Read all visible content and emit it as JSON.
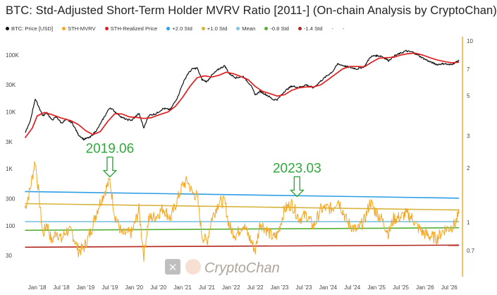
{
  "chart_data": {
    "type": "line",
    "title": "BTC: Std-Adjusted Short-Term Holder MVRV Ratio [2011-] (On-chain Analysis by CryptoChan)",
    "legend": [
      {
        "name": "BTC: Price [USD]",
        "color": "#111111"
      },
      {
        "name": "STH-MVRV",
        "color": "#f5a623"
      },
      {
        "name": "STH-Realized Price",
        "color": "#e02020"
      },
      {
        "name": "+2.0 Std",
        "color": "#2e9fe6"
      },
      {
        "name": "+1.0 Std",
        "color": "#d6b23a"
      },
      {
        "name": "Mean",
        "color": "#7cc3e6"
      },
      {
        "name": "-0.8 Std",
        "color": "#56b034"
      },
      {
        "name": "-1.4 Std",
        "color": "#b3261e"
      },
      {
        "name": "-",
        "color": ""
      },
      {
        "name": "-",
        "color": ""
      }
    ],
    "x_tick_labels": [
      "Jan '18",
      "Jul '18",
      "Jan '19",
      "Jul '19",
      "Jan '20",
      "Jul '20",
      "Jan '21",
      "Jul '21",
      "Jan '22",
      "Jul '22",
      "Jan '23",
      "Jul '23",
      "Jan '24",
      "Jul '24",
      "Jan '25",
      "Jul '25",
      "Jan '26",
      "Jul '26"
    ],
    "x_tick_years": [
      2018.0,
      2018.5,
      2019.0,
      2019.5,
      2020.0,
      2020.5,
      2021.0,
      2021.5,
      2022.0,
      2022.5,
      2023.0,
      2023.5,
      2024.0,
      2024.5,
      2025.0,
      2025.5,
      2026.0,
      2026.5
    ],
    "x_range": [
      "2017-09",
      "2026-10"
    ],
    "left_axis": {
      "scale": "log",
      "ticks": [
        {
          "label": "30",
          "value": 30
        },
        {
          "label": "100",
          "value": 100
        },
        {
          "label": "300",
          "value": 300
        },
        {
          "label": "1K",
          "value": 1000
        },
        {
          "label": "3K",
          "value": 3000
        },
        {
          "label": "10K",
          "value": 10000
        },
        {
          "label": "30K",
          "value": 30000
        },
        {
          "label": "100K",
          "value": 100000
        }
      ]
    },
    "right_axis": {
      "scale": "log",
      "ticks": [
        {
          "label": "0.7",
          "value": 0.7
        },
        {
          "label": "1",
          "value": 1
        },
        {
          "label": "2",
          "value": 2
        },
        {
          "label": "3",
          "value": 3
        },
        {
          "label": "5",
          "value": 5
        },
        {
          "label": "7",
          "value": 7
        },
        {
          "label": "10",
          "value": 10
        }
      ]
    },
    "series": [
      {
        "name": "BTC: Price [USD]",
        "axis": "left",
        "color": "#111111",
        "points": [
          [
            2017.75,
            4300
          ],
          [
            2017.85,
            6500
          ],
          [
            2017.96,
            17000
          ],
          [
            2018.05,
            11500
          ],
          [
            2018.12,
            8500
          ],
          [
            2018.2,
            9800
          ],
          [
            2018.3,
            7200
          ],
          [
            2018.4,
            8200
          ],
          [
            2018.5,
            6400
          ],
          [
            2018.6,
            7300
          ],
          [
            2018.72,
            6500
          ],
          [
            2018.85,
            4000
          ],
          [
            2018.96,
            3300
          ],
          [
            2019.1,
            3600
          ],
          [
            2019.25,
            5100
          ],
          [
            2019.4,
            8600
          ],
          [
            2019.5,
            12000
          ],
          [
            2019.6,
            10200
          ],
          [
            2019.75,
            8000
          ],
          [
            2019.85,
            7300
          ],
          [
            2019.96,
            7200
          ],
          [
            2020.1,
            9500
          ],
          [
            2020.2,
            5200
          ],
          [
            2020.3,
            8700
          ],
          [
            2020.45,
            9300
          ],
          [
            2020.6,
            11500
          ],
          [
            2020.75,
            11000
          ],
          [
            2020.9,
            18500
          ],
          [
            2021.0,
            31000
          ],
          [
            2021.1,
            46000
          ],
          [
            2021.2,
            57000
          ],
          [
            2021.3,
            59000
          ],
          [
            2021.4,
            37000
          ],
          [
            2021.5,
            34000
          ],
          [
            2021.6,
            44000
          ],
          [
            2021.75,
            57000
          ],
          [
            2021.87,
            65000
          ],
          [
            2021.96,
            47000
          ],
          [
            2022.1,
            40000
          ],
          [
            2022.25,
            42000
          ],
          [
            2022.4,
            30000
          ],
          [
            2022.5,
            20000
          ],
          [
            2022.6,
            23000
          ],
          [
            2022.75,
            19500
          ],
          [
            2022.87,
            16500
          ],
          [
            2022.96,
            16600
          ],
          [
            2023.1,
            23000
          ],
          [
            2023.25,
            28500
          ],
          [
            2023.4,
            27000
          ],
          [
            2023.55,
            30000
          ],
          [
            2023.7,
            26500
          ],
          [
            2023.85,
            35000
          ],
          [
            2023.96,
            42000
          ],
          [
            2024.1,
            52000
          ],
          [
            2024.2,
            70000
          ],
          [
            2024.4,
            62000
          ],
          [
            2024.6,
            57000
          ],
          [
            2024.75,
            63000
          ],
          [
            2024.87,
            92000
          ],
          [
            2024.96,
            98000
          ],
          [
            2025.1,
            96000
          ],
          [
            2025.25,
            80000
          ],
          [
            2025.35,
            95000
          ],
          [
            2025.5,
            108000
          ],
          [
            2025.6,
            118000
          ],
          [
            2025.75,
            112000
          ],
          [
            2025.85,
            100000
          ],
          [
            2025.96,
            88000
          ],
          [
            2026.1,
            76000
          ],
          [
            2026.25,
            68000
          ],
          [
            2026.4,
            71000
          ],
          [
            2026.5,
            67000
          ],
          [
            2026.62,
            73000
          ],
          [
            2026.7,
            82000
          ]
        ]
      },
      {
        "name": "STH-Realized Price",
        "axis": "left",
        "color": "#e02020",
        "points": [
          [
            2017.75,
            3500
          ],
          [
            2017.9,
            5200
          ],
          [
            2018.0,
            8500
          ],
          [
            2018.15,
            9800
          ],
          [
            2018.3,
            9000
          ],
          [
            2018.5,
            7800
          ],
          [
            2018.7,
            7000
          ],
          [
            2018.85,
            6000
          ],
          [
            2019.0,
            4700
          ],
          [
            2019.15,
            4000
          ],
          [
            2019.3,
            4500
          ],
          [
            2019.45,
            6700
          ],
          [
            2019.6,
            9300
          ],
          [
            2019.75,
            9200
          ],
          [
            2019.9,
            8200
          ],
          [
            2020.05,
            8000
          ],
          [
            2020.2,
            7700
          ],
          [
            2020.35,
            7900
          ],
          [
            2020.5,
            8800
          ],
          [
            2020.7,
            10000
          ],
          [
            2020.85,
            12500
          ],
          [
            2021.0,
            18000
          ],
          [
            2021.15,
            28000
          ],
          [
            2021.3,
            40000
          ],
          [
            2021.45,
            43000
          ],
          [
            2021.6,
            41000
          ],
          [
            2021.75,
            44000
          ],
          [
            2021.9,
            50000
          ],
          [
            2022.05,
            47000
          ],
          [
            2022.2,
            42000
          ],
          [
            2022.35,
            37000
          ],
          [
            2022.5,
            28000
          ],
          [
            2022.65,
            23000
          ],
          [
            2022.8,
            21000
          ],
          [
            2022.95,
            19000
          ],
          [
            2023.1,
            20000
          ],
          [
            2023.25,
            24000
          ],
          [
            2023.4,
            26500
          ],
          [
            2023.55,
            27500
          ],
          [
            2023.7,
            27500
          ],
          [
            2023.85,
            30000
          ],
          [
            2024.0,
            37000
          ],
          [
            2024.15,
            46000
          ],
          [
            2024.3,
            57000
          ],
          [
            2024.45,
            63000
          ],
          [
            2024.6,
            63000
          ],
          [
            2024.75,
            62000
          ],
          [
            2024.9,
            75000
          ],
          [
            2025.05,
            88000
          ],
          [
            2025.2,
            90000
          ],
          [
            2025.35,
            91000
          ],
          [
            2025.5,
            100000
          ],
          [
            2025.65,
            106000
          ],
          [
            2025.8,
            108000
          ],
          [
            2025.95,
            100000
          ],
          [
            2026.1,
            90000
          ],
          [
            2026.25,
            82000
          ],
          [
            2026.4,
            77000
          ],
          [
            2026.55,
            73000
          ],
          [
            2026.7,
            75000
          ]
        ]
      },
      {
        "name": "STH-MVRV",
        "axis": "right",
        "color": "#f5a623",
        "points": [
          [
            2017.75,
            1.2
          ],
          [
            2017.85,
            1.5
          ],
          [
            2017.96,
            2.2
          ],
          [
            2018.05,
            1.3
          ],
          [
            2018.12,
            0.85
          ],
          [
            2018.2,
            1.0
          ],
          [
            2018.3,
            0.78
          ],
          [
            2018.4,
            0.9
          ],
          [
            2018.5,
            0.8
          ],
          [
            2018.6,
            0.9
          ],
          [
            2018.72,
            0.88
          ],
          [
            2018.85,
            0.7
          ],
          [
            2018.96,
            0.72
          ],
          [
            2019.1,
            0.88
          ],
          [
            2019.25,
            1.2
          ],
          [
            2019.4,
            1.5
          ],
          [
            2019.5,
            1.7
          ],
          [
            2019.6,
            1.1
          ],
          [
            2019.75,
            0.86
          ],
          [
            2019.85,
            0.87
          ],
          [
            2019.96,
            0.88
          ],
          [
            2020.1,
            1.18
          ],
          [
            2020.2,
            0.66
          ],
          [
            2020.3,
            1.05
          ],
          [
            2020.45,
            1.08
          ],
          [
            2020.6,
            1.2
          ],
          [
            2020.75,
            1.05
          ],
          [
            2020.9,
            1.35
          ],
          [
            2021.0,
            1.6
          ],
          [
            2021.1,
            1.7
          ],
          [
            2021.2,
            1.45
          ],
          [
            2021.3,
            1.4
          ],
          [
            2021.4,
            0.85
          ],
          [
            2021.5,
            0.78
          ],
          [
            2021.6,
            1.05
          ],
          [
            2021.75,
            1.3
          ],
          [
            2021.87,
            1.3
          ],
          [
            2021.96,
            0.95
          ],
          [
            2022.1,
            0.85
          ],
          [
            2022.25,
            0.98
          ],
          [
            2022.4,
            0.8
          ],
          [
            2022.5,
            0.7
          ],
          [
            2022.6,
            1.0
          ],
          [
            2022.75,
            0.9
          ],
          [
            2022.87,
            0.82
          ],
          [
            2022.96,
            0.86
          ],
          [
            2023.1,
            1.18
          ],
          [
            2023.25,
            1.27
          ],
          [
            2023.4,
            1.05
          ],
          [
            2023.55,
            1.1
          ],
          [
            2023.7,
            0.95
          ],
          [
            2023.85,
            1.18
          ],
          [
            2023.96,
            1.2
          ],
          [
            2024.1,
            1.2
          ],
          [
            2024.2,
            1.35
          ],
          [
            2024.4,
            1.0
          ],
          [
            2024.6,
            0.9
          ],
          [
            2024.75,
            1.03
          ],
          [
            2024.87,
            1.3
          ],
          [
            2024.96,
            1.17
          ],
          [
            2025.1,
            1.05
          ],
          [
            2025.25,
            0.87
          ],
          [
            2025.35,
            1.05
          ],
          [
            2025.5,
            1.07
          ],
          [
            2025.6,
            1.12
          ],
          [
            2025.75,
            1.05
          ],
          [
            2025.85,
            0.94
          ],
          [
            2025.96,
            0.88
          ],
          [
            2026.1,
            0.84
          ],
          [
            2026.25,
            0.82
          ],
          [
            2026.4,
            0.92
          ],
          [
            2026.5,
            0.93
          ],
          [
            2026.62,
            0.98
          ],
          [
            2026.7,
            1.12
          ]
        ]
      },
      {
        "name": "+2.0 Std",
        "axis": "right",
        "color": "#2e9fe6",
        "points": [
          [
            2017.75,
            1.48
          ],
          [
            2026.7,
            1.36
          ]
        ]
      },
      {
        "name": "+1.0 Std",
        "axis": "right",
        "color": "#d6b23a",
        "points": [
          [
            2017.75,
            1.27
          ],
          [
            2026.7,
            1.17
          ]
        ]
      },
      {
        "name": "Mean",
        "axis": "right",
        "color": "#7cc3e6",
        "points": [
          [
            2017.75,
            1.01
          ],
          [
            2026.7,
            1.01
          ]
        ]
      },
      {
        "name": "-0.8 Std",
        "axis": "right",
        "color": "#56b034",
        "points": [
          [
            2017.75,
            0.905
          ],
          [
            2026.7,
            0.935
          ]
        ]
      },
      {
        "name": "-1.4 Std",
        "axis": "right",
        "color": "#b3261e",
        "points": [
          [
            2017.75,
            0.73
          ],
          [
            2026.7,
            0.75
          ]
        ]
      }
    ],
    "annotations": [
      {
        "text": "2019.06",
        "x": 2019.5,
        "y_axis": "right",
        "y": 1.72
      },
      {
        "text": "2023.03",
        "x": 2023.36,
        "y_axis": "right",
        "y": 1.34
      }
    ],
    "grid": false,
    "legend_placement": "top"
  },
  "watermark": {
    "text": "CryptoChan"
  }
}
